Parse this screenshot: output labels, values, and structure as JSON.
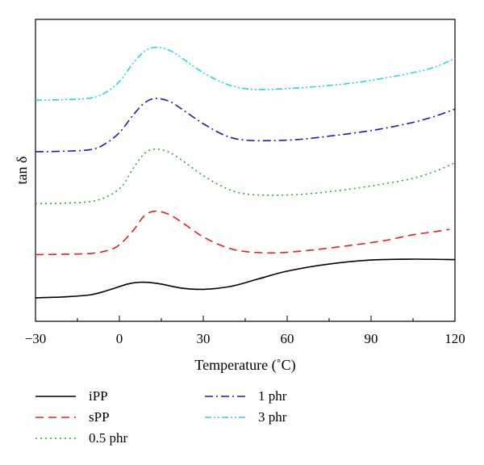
{
  "chart_data": {
    "type": "line",
    "title": "",
    "xlabel": "Temperature (˚C)",
    "ylabel": "tan δ",
    "xlim": [
      -30,
      120
    ],
    "xticks": [
      -30,
      0,
      30,
      60,
      90,
      120
    ],
    "yticks_shown": false,
    "grid": false,
    "legend_position": "below-plot",
    "series": [
      {
        "name": "iPP",
        "color": "#000000",
        "style": "solid",
        "points": [
          [
            -30,
            0.03
          ],
          [
            -20,
            0.05
          ],
          [
            -10,
            0.1
          ],
          [
            -3,
            0.22
          ],
          [
            3,
            0.34
          ],
          [
            8,
            0.38
          ],
          [
            14,
            0.35
          ],
          [
            22,
            0.25
          ],
          [
            30,
            0.22
          ],
          [
            40,
            0.29
          ],
          [
            50,
            0.46
          ],
          [
            60,
            0.63
          ],
          [
            75,
            0.79
          ],
          [
            90,
            0.88
          ],
          [
            105,
            0.9
          ],
          [
            120,
            0.89
          ]
        ]
      },
      {
        "name": "sPP",
        "color": "#e32020",
        "style": "dashed",
        "points": [
          [
            -30,
            1.0
          ],
          [
            -20,
            1.01
          ],
          [
            -10,
            1.03
          ],
          [
            -4,
            1.1
          ],
          [
            0,
            1.22
          ],
          [
            5,
            1.55
          ],
          [
            9,
            1.88
          ],
          [
            13,
            1.98
          ],
          [
            18,
            1.9
          ],
          [
            23,
            1.7
          ],
          [
            30,
            1.4
          ],
          [
            38,
            1.17
          ],
          [
            45,
            1.07
          ],
          [
            55,
            1.04
          ],
          [
            65,
            1.08
          ],
          [
            75,
            1.15
          ],
          [
            85,
            1.23
          ],
          [
            95,
            1.32
          ],
          [
            105,
            1.45
          ],
          [
            113,
            1.52
          ],
          [
            118,
            1.57
          ]
        ]
      },
      {
        "name": "0.5 phr",
        "color": "#22b522",
        "style": "dotted",
        "points": [
          [
            -30,
            2.15
          ],
          [
            -20,
            2.16
          ],
          [
            -10,
            2.2
          ],
          [
            -4,
            2.32
          ],
          [
            1,
            2.55
          ],
          [
            5,
            2.95
          ],
          [
            9,
            3.28
          ],
          [
            13,
            3.38
          ],
          [
            18,
            3.3
          ],
          [
            23,
            3.1
          ],
          [
            30,
            2.78
          ],
          [
            38,
            2.5
          ],
          [
            45,
            2.37
          ],
          [
            55,
            2.34
          ],
          [
            65,
            2.36
          ],
          [
            75,
            2.42
          ],
          [
            85,
            2.5
          ],
          [
            95,
            2.6
          ],
          [
            105,
            2.72
          ],
          [
            113,
            2.88
          ],
          [
            120,
            3.07
          ]
        ]
      },
      {
        "name": "1 phr",
        "color": "#1a1ab4",
        "style": "dash-dot",
        "points": [
          [
            -30,
            3.32
          ],
          [
            -20,
            3.33
          ],
          [
            -10,
            3.37
          ],
          [
            -5,
            3.5
          ],
          [
            0,
            3.75
          ],
          [
            5,
            4.15
          ],
          [
            9,
            4.42
          ],
          [
            13,
            4.52
          ],
          [
            18,
            4.45
          ],
          [
            23,
            4.25
          ],
          [
            30,
            3.95
          ],
          [
            38,
            3.68
          ],
          [
            45,
            3.58
          ],
          [
            55,
            3.57
          ],
          [
            65,
            3.6
          ],
          [
            75,
            3.67
          ],
          [
            85,
            3.75
          ],
          [
            95,
            3.85
          ],
          [
            105,
            3.98
          ],
          [
            113,
            4.12
          ],
          [
            120,
            4.28
          ]
        ]
      },
      {
        "name": "3 phr",
        "color": "#22d8e8",
        "style": "dash-dot-dot",
        "points": [
          [
            -30,
            4.48
          ],
          [
            -20,
            4.49
          ],
          [
            -10,
            4.53
          ],
          [
            -5,
            4.65
          ],
          [
            0,
            4.9
          ],
          [
            5,
            5.32
          ],
          [
            9,
            5.58
          ],
          [
            13,
            5.67
          ],
          [
            18,
            5.6
          ],
          [
            23,
            5.4
          ],
          [
            30,
            5.1
          ],
          [
            38,
            4.85
          ],
          [
            45,
            4.74
          ],
          [
            52,
            4.72
          ],
          [
            65,
            4.76
          ],
          [
            75,
            4.81
          ],
          [
            85,
            4.88
          ],
          [
            95,
            4.98
          ],
          [
            105,
            5.1
          ],
          [
            113,
            5.23
          ],
          [
            120,
            5.42
          ]
        ]
      }
    ]
  }
}
